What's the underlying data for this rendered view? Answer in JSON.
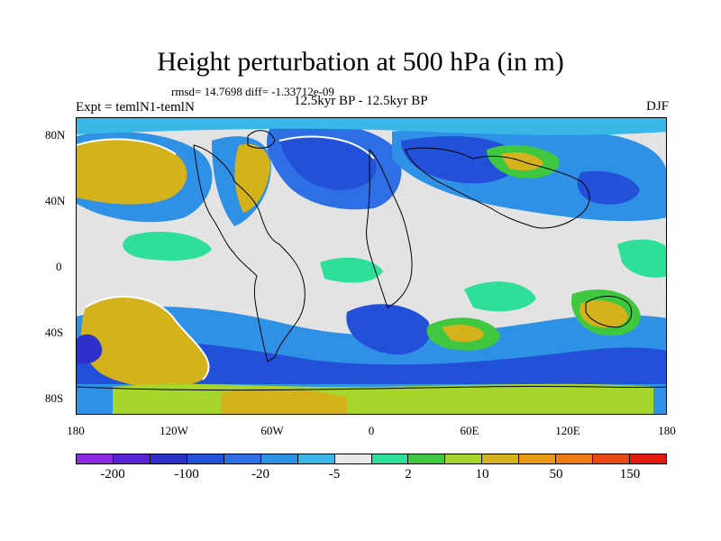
{
  "title": "Height perturbation at 500 hPa (in m)",
  "stats": "rmsd= 14.7698 diff= -1.33712e-09",
  "expt": "Expt = temlN1-temlN",
  "period": "12.5kyr BP - 12.5kyr BP",
  "season": "DJF",
  "lat_labels": [
    "80N",
    "40N",
    "0",
    "40S",
    "80S"
  ],
  "lon_labels": [
    "180",
    "120W",
    "60W",
    "0",
    "60E",
    "120E",
    "180"
  ],
  "colorbar": {
    "colors": [
      "#8d2be2",
      "#5a23d6",
      "#2e31c9",
      "#2250d8",
      "#2f6fe6",
      "#2f91e6",
      "#38b7e8",
      "#e8e8e8",
      "#2edf9a",
      "#3fc83f",
      "#a6d62c",
      "#d4b21c",
      "#e59a12",
      "#ee7a12",
      "#e84a12",
      "#e31c12"
    ],
    "labels": [
      "-200",
      "-100",
      "-20",
      "-5",
      "2",
      "10",
      "50",
      "150"
    ]
  }
}
